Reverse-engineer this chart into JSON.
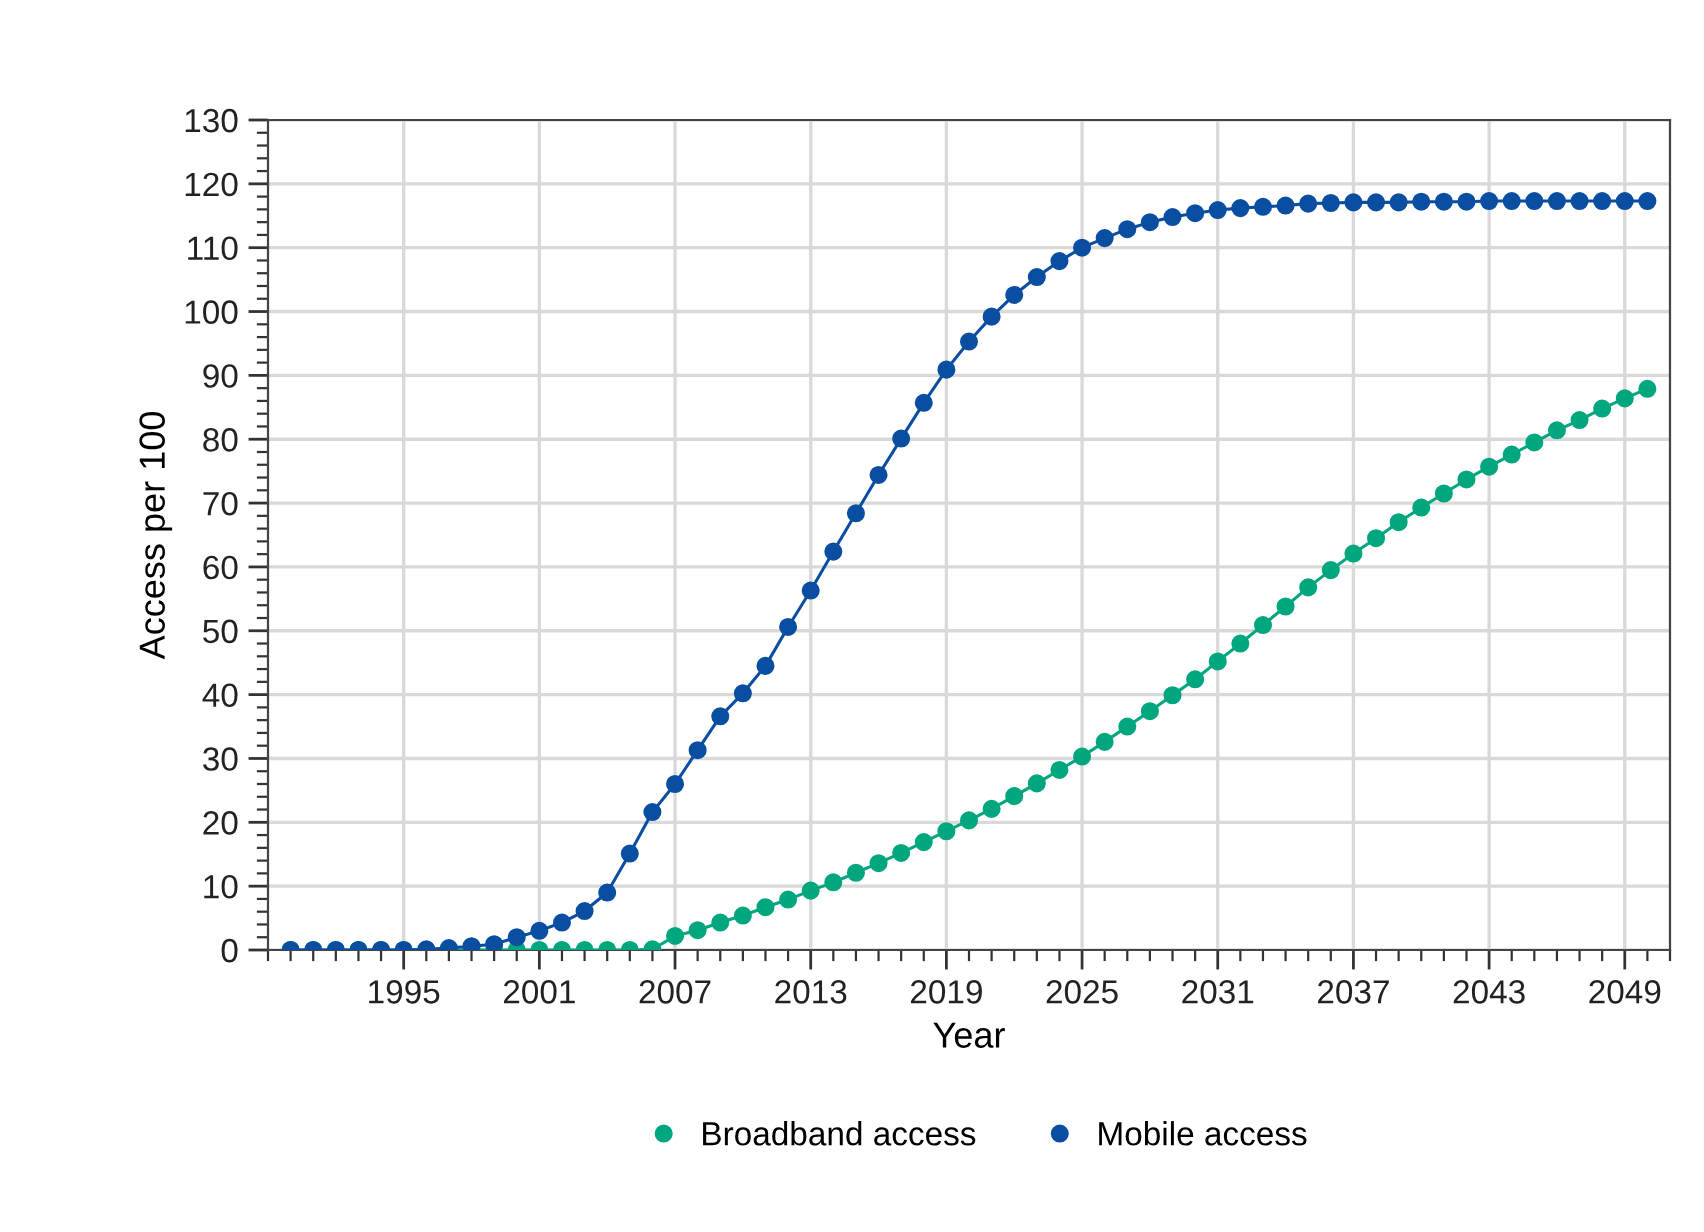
{
  "chart_data": {
    "type": "line",
    "xlabel": "Year",
    "ylabel": "Access per 100",
    "x": [
      1990,
      1991,
      1992,
      1993,
      1994,
      1995,
      1996,
      1997,
      1998,
      1999,
      2000,
      2001,
      2002,
      2003,
      2004,
      2005,
      2006,
      2007,
      2008,
      2009,
      2010,
      2011,
      2012,
      2013,
      2014,
      2015,
      2016,
      2017,
      2018,
      2019,
      2020,
      2021,
      2022,
      2023,
      2024,
      2025,
      2026,
      2027,
      2028,
      2029,
      2030,
      2031,
      2032,
      2033,
      2034,
      2035,
      2036,
      2037,
      2038,
      2039,
      2040,
      2041,
      2042,
      2043,
      2044,
      2045,
      2046,
      2047,
      2048,
      2049,
      2050
    ],
    "series": [
      {
        "name": "Broadband access",
        "color": "#00a67e",
        "values": [
          0,
          0,
          0,
          0,
          0,
          0,
          0,
          0,
          0,
          0,
          0,
          0,
          0,
          0,
          0,
          0,
          0.1,
          2.2,
          3.1,
          4.3,
          5.4,
          6.7,
          7.9,
          9.3,
          10.6,
          12.1,
          13.6,
          15.2,
          16.9,
          18.6,
          20.3,
          22.1,
          24.1,
          26.1,
          28.2,
          30.3,
          32.6,
          35.0,
          37.4,
          39.9,
          42.4,
          45.2,
          48.0,
          50.9,
          53.8,
          56.8,
          59.5,
          62.1,
          64.5,
          67.0,
          69.3,
          71.5,
          73.7,
          75.7,
          77.6,
          79.5,
          81.4,
          83.0,
          84.8,
          86.4,
          87.9
        ]
      },
      {
        "name": "Mobile access",
        "color": "#0a4ea2",
        "values": [
          0,
          0,
          0,
          0,
          0,
          0,
          0.1,
          0.3,
          0.6,
          0.9,
          2.0,
          3.0,
          4.3,
          6.1,
          9.0,
          15.1,
          21.6,
          26.0,
          31.3,
          36.6,
          40.2,
          44.5,
          50.6,
          56.3,
          62.4,
          68.4,
          74.4,
          80.1,
          85.7,
          90.9,
          95.3,
          99.2,
          102.6,
          105.4,
          107.9,
          110.0,
          111.5,
          112.9,
          114.0,
          114.8,
          115.4,
          115.9,
          116.2,
          116.4,
          116.6,
          116.9,
          117.0,
          117.1,
          117.1,
          117.1,
          117.2,
          117.2,
          117.2,
          117.3,
          117.3,
          117.3,
          117.3,
          117.3,
          117.3,
          117.3,
          117.3
        ]
      }
    ],
    "xlim": [
      1989,
      2051
    ],
    "ylim": [
      0,
      130
    ],
    "xticks": [
      {
        "value": 1989,
        "label": null
      },
      {
        "value": 1990,
        "label": null
      },
      {
        "value": 1991,
        "label": null
      },
      {
        "value": 1992,
        "label": null
      },
      {
        "value": 1993,
        "label": null
      },
      {
        "value": 1994,
        "label": null
      },
      1995,
      {
        "value": 1996,
        "label": null
      },
      {
        "value": 1997,
        "label": null
      },
      {
        "value": 1998,
        "label": null
      },
      {
        "value": 1999,
        "label": null
      },
      {
        "value": 2000,
        "label": null
      },
      2001,
      {
        "value": 2002,
        "label": null
      },
      {
        "value": 2003,
        "label": null
      },
      {
        "value": 2004,
        "label": null
      },
      {
        "value": 2005,
        "label": null
      },
      {
        "value": 2006,
        "label": null
      },
      2007,
      {
        "value": 2008,
        "label": null
      },
      {
        "value": 2009,
        "label": null
      },
      {
        "value": 2010,
        "label": null
      },
      {
        "value": 2011,
        "label": null
      },
      {
        "value": 2012,
        "label": null
      },
      2013,
      {
        "value": 2014,
        "label": null
      },
      {
        "value": 2015,
        "label": null
      },
      {
        "value": 2016,
        "label": null
      },
      {
        "value": 2017,
        "label": null
      },
      {
        "value": 2018,
        "label": null
      },
      2019,
      {
        "value": 2020,
        "label": null
      },
      {
        "value": 2021,
        "label": null
      },
      {
        "value": 2022,
        "label": null
      },
      {
        "value": 2023,
        "label": null
      },
      {
        "value": 2024,
        "label": null
      },
      2025,
      {
        "value": 2026,
        "label": null
      },
      {
        "value": 2027,
        "label": null
      },
      {
        "value": 2028,
        "label": null
      },
      {
        "value": 2029,
        "label": null
      },
      {
        "value": 2030,
        "label": null
      },
      2031,
      {
        "value": 2032,
        "label": null
      },
      {
        "value": 2033,
        "label": null
      },
      {
        "value": 2034,
        "label": null
      },
      {
        "value": 2035,
        "label": null
      },
      {
        "value": 2036,
        "label": null
      },
      2037,
      {
        "value": 2038,
        "label": null
      },
      {
        "value": 2039,
        "label": null
      },
      {
        "value": 2040,
        "label": null
      },
      {
        "value": 2041,
        "label": null
      },
      {
        "value": 2042,
        "label": null
      },
      2043,
      {
        "value": 2044,
        "label": null
      },
      {
        "value": 2045,
        "label": null
      },
      {
        "value": 2046,
        "label": null
      },
      {
        "value": 2047,
        "label": null
      },
      {
        "value": 2048,
        "label": null
      },
      2049,
      {
        "value": 2050,
        "label": null
      },
      {
        "value": 2051,
        "label": null
      }
    ],
    "yticks": [
      0,
      {
        "value": 2,
        "label": null
      },
      {
        "value": 4,
        "label": null
      },
      {
        "value": 6,
        "label": null
      },
      {
        "value": 8,
        "label": null
      },
      10,
      {
        "value": 12,
        "label": null
      },
      {
        "value": 14,
        "label": null
      },
      {
        "value": 16,
        "label": null
      },
      {
        "value": 18,
        "label": null
      },
      20,
      {
        "value": 22,
        "label": null
      },
      {
        "value": 24,
        "label": null
      },
      {
        "value": 26,
        "label": null
      },
      {
        "value": 28,
        "label": null
      },
      30,
      {
        "value": 32,
        "label": null
      },
      {
        "value": 34,
        "label": null
      },
      {
        "value": 36,
        "label": null
      },
      {
        "value": 38,
        "label": null
      },
      40,
      {
        "value": 42,
        "label": null
      },
      {
        "value": 44,
        "label": null
      },
      {
        "value": 46,
        "label": null
      },
      {
        "value": 48,
        "label": null
      },
      50,
      {
        "value": 52,
        "label": null
      },
      {
        "value": 54,
        "label": null
      },
      {
        "value": 56,
        "label": null
      },
      {
        "value": 58,
        "label": null
      },
      60,
      {
        "value": 62,
        "label": null
      },
      {
        "value": 64,
        "label": null
      },
      {
        "value": 66,
        "label": null
      },
      {
        "value": 68,
        "label": null
      },
      70,
      {
        "value": 72,
        "label": null
      },
      {
        "value": 74,
        "label": null
      },
      {
        "value": 76,
        "label": null
      },
      {
        "value": 78,
        "label": null
      },
      80,
      {
        "value": 82,
        "label": null
      },
      {
        "value": 84,
        "label": null
      },
      {
        "value": 86,
        "label": null
      },
      {
        "value": 88,
        "label": null
      },
      90,
      {
        "value": 92,
        "label": null
      },
      {
        "value": 94,
        "label": null
      },
      {
        "value": 96,
        "label": null
      },
      {
        "value": 98,
        "label": null
      },
      100,
      {
        "value": 102,
        "label": null
      },
      {
        "value": 104,
        "label": null
      },
      {
        "value": 106,
        "label": null
      },
      {
        "value": 108,
        "label": null
      },
      110,
      {
        "value": 112,
        "label": null
      },
      {
        "value": 114,
        "label": null
      },
      {
        "value": 116,
        "label": null
      },
      {
        "value": 118,
        "label": null
      },
      120,
      {
        "value": 122,
        "label": null
      },
      {
        "value": 124,
        "label": null
      },
      {
        "value": 126,
        "label": null
      },
      {
        "value": 128,
        "label": null
      },
      130
    ],
    "grid": true,
    "legend": "bottom",
    "marker": "circle",
    "line_style": "solid"
  }
}
